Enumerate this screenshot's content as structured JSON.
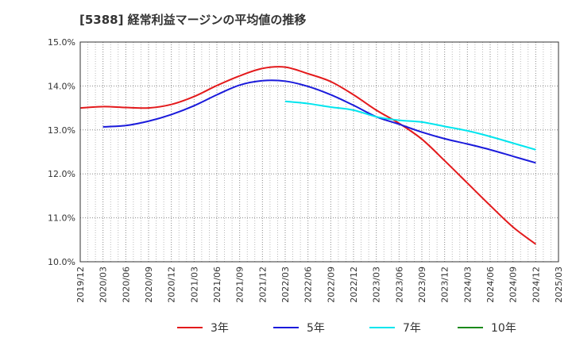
{
  "chart_data": {
    "type": "line",
    "title": "[5388]  経常利益マージンの平均値の推移",
    "xlabel": "",
    "ylabel": "",
    "x_ticks": [
      "2019/12",
      "2020/03",
      "2020/06",
      "2020/09",
      "2020/12",
      "2021/03",
      "2021/06",
      "2021/09",
      "2021/12",
      "2022/03",
      "2022/06",
      "2022/09",
      "2022/12",
      "2023/03",
      "2023/06",
      "2023/09",
      "2023/12",
      "2024/03",
      "2024/06",
      "2024/09",
      "2024/12",
      "2025/03"
    ],
    "y_ticks": [
      "10.0%",
      "11.0%",
      "12.0%",
      "13.0%",
      "14.0%",
      "15.0%"
    ],
    "ylim": [
      10.0,
      15.0
    ],
    "grid": true,
    "legend_position": "bottom",
    "series": [
      {
        "name": "3年",
        "color": "#e31a1c",
        "x": [
          "2019/12",
          "2020/03",
          "2020/06",
          "2020/09",
          "2020/12",
          "2021/03",
          "2021/06",
          "2021/09",
          "2021/12",
          "2022/03",
          "2022/06",
          "2022/09",
          "2022/12",
          "2023/03",
          "2023/06",
          "2023/09",
          "2023/12",
          "2024/03",
          "2024/06",
          "2024/09",
          "2024/12"
        ],
        "values": [
          13.5,
          13.53,
          13.51,
          13.5,
          13.58,
          13.76,
          14.01,
          14.23,
          14.4,
          14.43,
          14.28,
          14.1,
          13.8,
          13.45,
          13.15,
          12.79,
          12.3,
          11.79,
          11.28,
          10.79,
          10.4
        ]
      },
      {
        "name": "5年",
        "color": "#1a1adb",
        "x": [
          "2020/03",
          "2020/06",
          "2020/09",
          "2020/12",
          "2021/03",
          "2021/06",
          "2021/09",
          "2021/12",
          "2022/03",
          "2022/06",
          "2022/09",
          "2022/12",
          "2023/03",
          "2023/06",
          "2023/09",
          "2023/12",
          "2024/03",
          "2024/06",
          "2024/09",
          "2024/12"
        ],
        "values": [
          13.07,
          13.1,
          13.2,
          13.35,
          13.55,
          13.8,
          14.02,
          14.12,
          14.11,
          13.99,
          13.8,
          13.56,
          13.3,
          13.13,
          12.95,
          12.8,
          12.68,
          12.55,
          12.4,
          12.25
        ]
      },
      {
        "name": "7年",
        "color": "#00e5ee",
        "x": [
          "2022/03",
          "2022/06",
          "2022/09",
          "2022/12",
          "2023/03",
          "2023/06",
          "2023/09",
          "2023/12",
          "2024/03",
          "2024/06",
          "2024/09",
          "2024/12"
        ],
        "values": [
          13.65,
          13.6,
          13.52,
          13.45,
          13.3,
          13.22,
          13.18,
          13.08,
          12.98,
          12.85,
          12.7,
          12.55
        ]
      },
      {
        "name": "10年",
        "color": "#1a8a1a",
        "x": [],
        "values": []
      }
    ]
  }
}
